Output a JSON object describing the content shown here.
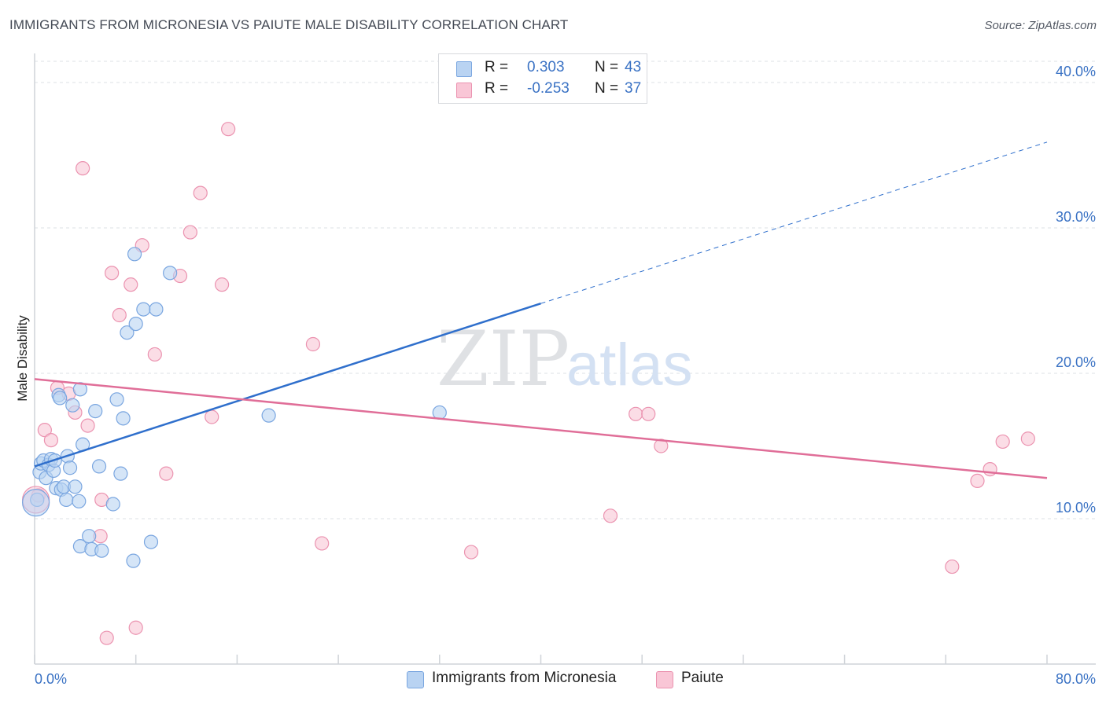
{
  "title": "IMMIGRANTS FROM MICRONESIA VS PAIUTE MALE DISABILITY CORRELATION CHART",
  "source": "Source: ZipAtlas.com",
  "watermark": {
    "zip": "ZIP",
    "atlas": "atlas"
  },
  "legend": {
    "rows": [
      {
        "r_label": "R =",
        "r_value": "0.303",
        "n_label": "N =",
        "n_value": "43"
      },
      {
        "r_label": "R =",
        "r_value": "-0.253",
        "n_label": "N =",
        "n_value": "37"
      }
    ]
  },
  "bottom_legend": [
    {
      "label": "Immigrants from Micronesia"
    },
    {
      "label": "Paiute"
    }
  ],
  "colors": {
    "blue_fill": "#b9d3f2",
    "blue_stroke": "#7aa6e0",
    "blue_line": "#2f6fcc",
    "pink_fill": "#f9c6d6",
    "pink_stroke": "#eb93b0",
    "pink_line": "#e06e98",
    "grid": "#dde0e4",
    "axis": "#cfd3d8"
  },
  "chart_data": {
    "type": "scatter",
    "title": "IMMIGRANTS FROM MICRONESIA VS PAIUTE MALE DISABILITY CORRELATION CHART",
    "xlabel": "",
    "ylabel": "Male Disability",
    "xlim": [
      0,
      80
    ],
    "ylim": [
      0,
      42
    ],
    "x_tick_labels": [
      "0.0%",
      "80.0%"
    ],
    "y_ticks": [
      10,
      20,
      30,
      40
    ],
    "y_tick_labels": [
      "10.0%",
      "20.0%",
      "30.0%",
      "40.0%"
    ],
    "grid": true,
    "legend_position": "top-center",
    "series": [
      {
        "name": "Immigrants from Micronesia",
        "r": 0.303,
        "n": 43,
        "points": [
          [
            0.2,
            11.3
          ],
          [
            0.4,
            13.2
          ],
          [
            0.5,
            13.8
          ],
          [
            0.7,
            14.0
          ],
          [
            0.9,
            12.8
          ],
          [
            1.1,
            13.7
          ],
          [
            1.3,
            14.1
          ],
          [
            1.5,
            13.3
          ],
          [
            1.6,
            14.0
          ],
          [
            1.7,
            12.1
          ],
          [
            1.9,
            18.5
          ],
          [
            2.0,
            18.3
          ],
          [
            2.1,
            12.0
          ],
          [
            2.3,
            12.2
          ],
          [
            2.5,
            11.3
          ],
          [
            2.6,
            14.3
          ],
          [
            2.8,
            13.5
          ],
          [
            3.0,
            17.8
          ],
          [
            3.2,
            12.2
          ],
          [
            3.5,
            11.2
          ],
          [
            3.6,
            18.9
          ],
          [
            3.8,
            15.1
          ],
          [
            3.6,
            8.1
          ],
          [
            4.3,
            8.8
          ],
          [
            4.5,
            7.9
          ],
          [
            4.8,
            17.4
          ],
          [
            5.1,
            13.6
          ],
          [
            5.3,
            7.8
          ],
          [
            6.2,
            11.0
          ],
          [
            6.5,
            18.2
          ],
          [
            6.8,
            13.1
          ],
          [
            7.0,
            16.9
          ],
          [
            7.3,
            22.8
          ],
          [
            7.8,
            7.1
          ],
          [
            8.0,
            23.4
          ],
          [
            8.6,
            24.4
          ],
          [
            9.2,
            8.4
          ],
          [
            9.6,
            24.4
          ],
          [
            10.7,
            26.9
          ],
          [
            7.9,
            28.2
          ],
          [
            18.5,
            17.1
          ],
          [
            32.0,
            17.3
          ],
          [
            0.1,
            11.1
          ]
        ],
        "trend": {
          "x_start": 0,
          "y_start": 13.6,
          "x_solid_end": 40,
          "y_solid_end": 24.8,
          "x_dash_end": 80,
          "y_dash_end": 35.9
        }
      },
      {
        "name": "Paiute",
        "r": -0.253,
        "n": 37,
        "points": [
          [
            0.3,
            11.6
          ],
          [
            0.8,
            16.1
          ],
          [
            1.3,
            15.4
          ],
          [
            1.8,
            19.0
          ],
          [
            2.7,
            18.6
          ],
          [
            3.2,
            17.3
          ],
          [
            4.2,
            16.4
          ],
          [
            3.8,
            34.1
          ],
          [
            5.2,
            8.8
          ],
          [
            5.3,
            11.3
          ],
          [
            5.7,
            1.8
          ],
          [
            6.1,
            26.9
          ],
          [
            6.7,
            24.0
          ],
          [
            7.6,
            26.1
          ],
          [
            8.0,
            2.5
          ],
          [
            8.5,
            28.8
          ],
          [
            9.5,
            21.3
          ],
          [
            10.4,
            13.1
          ],
          [
            11.5,
            26.7
          ],
          [
            12.3,
            29.7
          ],
          [
            13.1,
            32.4
          ],
          [
            14.0,
            17.0
          ],
          [
            14.8,
            26.1
          ],
          [
            15.3,
            36.8
          ],
          [
            22.0,
            22.0
          ],
          [
            22.7,
            8.3
          ],
          [
            34.5,
            7.7
          ],
          [
            45.5,
            10.2
          ],
          [
            47.5,
            17.2
          ],
          [
            48.5,
            17.2
          ],
          [
            49.5,
            15.0
          ],
          [
            72.5,
            6.7
          ],
          [
            74.5,
            12.6
          ],
          [
            75.5,
            13.4
          ],
          [
            76.5,
            15.3
          ],
          [
            78.5,
            15.5
          ],
          [
            0.1,
            11.3
          ]
        ],
        "trend": {
          "x_start": 0,
          "y_start": 19.6,
          "x_end": 80,
          "y_end": 12.8
        }
      }
    ]
  }
}
